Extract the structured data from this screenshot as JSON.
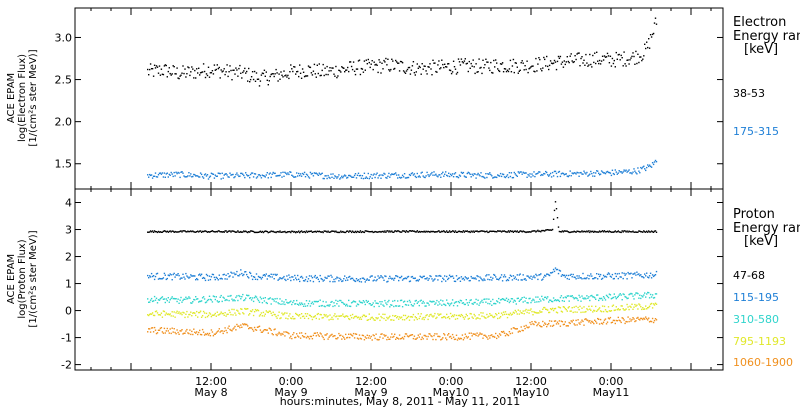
{
  "chart_data": [
    {
      "type": "scatter",
      "panel": "electron",
      "ylabel_lines": [
        "ACE EPAM",
        "log(Electron Flux)",
        "[1/(cm²s ster MeV)]"
      ],
      "ylim": [
        1.2,
        3.35
      ],
      "y_ticks": [
        1.5,
        2.0,
        2.5,
        3.0
      ],
      "y_tick_labels": [
        "1.5",
        "2.0",
        "2.5",
        "3.0"
      ],
      "legend_title_lines": [
        "Electron",
        "Energy ranges",
        "[keV]"
      ],
      "series": [
        {
          "name": "38-53",
          "color": "#000000",
          "baseline": 2.6,
          "points": [
            [
              0.1,
              2.6
            ],
            [
              0.2,
              2.62
            ],
            [
              0.3,
              2.58
            ],
            [
              0.4,
              2.6
            ],
            [
              0.5,
              2.63
            ],
            [
              0.6,
              2.6
            ],
            [
              0.7,
              2.58
            ],
            [
              0.8,
              2.52
            ],
            [
              0.9,
              2.55
            ],
            [
              1.0,
              2.6
            ],
            [
              1.1,
              2.62
            ],
            [
              1.2,
              2.6
            ],
            [
              1.3,
              2.62
            ],
            [
              1.4,
              2.65
            ],
            [
              1.5,
              2.66
            ],
            [
              1.6,
              2.68
            ],
            [
              1.7,
              2.66
            ],
            [
              1.8,
              2.64
            ],
            [
              1.9,
              2.65
            ],
            [
              2.0,
              2.66
            ],
            [
              2.1,
              2.67
            ],
            [
              2.2,
              2.66
            ],
            [
              2.3,
              2.68
            ],
            [
              2.4,
              2.67
            ],
            [
              2.5,
              2.68
            ],
            [
              2.6,
              2.7
            ],
            [
              2.7,
              2.72
            ],
            [
              2.8,
              2.74
            ],
            [
              2.9,
              2.75
            ],
            [
              3.0,
              2.74
            ],
            [
              3.05,
              2.75
            ],
            [
              3.1,
              2.76
            ],
            [
              3.15,
              2.78
            ],
            [
              3.2,
              2.82
            ],
            [
              3.23,
              2.92
            ],
            [
              3.26,
              3.08
            ],
            [
              3.28,
              3.2
            ]
          ]
        },
        {
          "name": "175-315",
          "color": "#1e7fd6",
          "baseline": 1.37,
          "points": [
            [
              0.1,
              1.37
            ],
            [
              0.3,
              1.38
            ],
            [
              0.5,
              1.36
            ],
            [
              0.8,
              1.37
            ],
            [
              1.0,
              1.38
            ],
            [
              1.3,
              1.36
            ],
            [
              1.6,
              1.37
            ],
            [
              1.9,
              1.38
            ],
            [
              2.2,
              1.37
            ],
            [
              2.5,
              1.38
            ],
            [
              2.8,
              1.39
            ],
            [
              3.0,
              1.4
            ],
            [
              3.15,
              1.42
            ],
            [
              3.22,
              1.46
            ],
            [
              3.26,
              1.5
            ],
            [
              3.28,
              1.55
            ]
          ]
        }
      ]
    },
    {
      "type": "scatter",
      "panel": "proton",
      "ylabel_lines": [
        "ACE EPAM",
        "log(Proton Flux)",
        "[1/(cm²s ster MeV)]"
      ],
      "ylim": [
        -2.2,
        4.5
      ],
      "y_ticks": [
        -2,
        -1,
        0,
        1,
        2,
        3,
        4
      ],
      "y_tick_labels": [
        "-2",
        "-1",
        "0",
        "1",
        "2",
        "3",
        "4"
      ],
      "legend_title_lines": [
        "Proton",
        "Energy ranges",
        "[keV]"
      ],
      "series": [
        {
          "name": "47-68",
          "color": "#000000",
          "baseline": 2.95,
          "points": [
            [
              0.1,
              2.95
            ],
            [
              0.5,
              2.95
            ],
            [
              1.0,
              2.94
            ],
            [
              1.5,
              2.95
            ],
            [
              2.0,
              2.95
            ],
            [
              2.5,
              2.95
            ],
            [
              2.63,
              3.0
            ],
            [
              2.64,
              3.6
            ],
            [
              2.65,
              4.1
            ],
            [
              2.67,
              2.95
            ],
            [
              3.0,
              2.95
            ],
            [
              3.28,
              2.95
            ]
          ]
        },
        {
          "name": "115-195",
          "color": "#1e7fd6",
          "baseline": 1.25,
          "points": [
            [
              0.1,
              1.3
            ],
            [
              0.3,
              1.28
            ],
            [
              0.5,
              1.25
            ],
            [
              0.6,
              1.3
            ],
            [
              0.7,
              1.45
            ],
            [
              0.75,
              1.3
            ],
            [
              1.0,
              1.22
            ],
            [
              1.5,
              1.2
            ],
            [
              2.0,
              1.22
            ],
            [
              2.3,
              1.24
            ],
            [
              2.6,
              1.28
            ],
            [
              2.65,
              1.55
            ],
            [
              2.7,
              1.3
            ],
            [
              3.0,
              1.3
            ],
            [
              3.28,
              1.35
            ]
          ]
        },
        {
          "name": "310-580",
          "color": "#2fd4cc",
          "baseline": 0.35,
          "points": [
            [
              0.1,
              0.45
            ],
            [
              0.3,
              0.4
            ],
            [
              0.7,
              0.5
            ],
            [
              1.0,
              0.3
            ],
            [
              1.5,
              0.28
            ],
            [
              2.0,
              0.3
            ],
            [
              2.3,
              0.35
            ],
            [
              2.6,
              0.45
            ],
            [
              3.0,
              0.52
            ],
            [
              3.28,
              0.6
            ]
          ]
        },
        {
          "name": "795-1193",
          "color": "#e0e82a",
          "baseline": -0.15,
          "points": [
            [
              0.1,
              -0.1
            ],
            [
              0.5,
              -0.12
            ],
            [
              0.7,
              0.0
            ],
            [
              1.0,
              -0.2
            ],
            [
              1.5,
              -0.22
            ],
            [
              2.0,
              -0.2
            ],
            [
              2.3,
              -0.15
            ],
            [
              2.6,
              0.05
            ],
            [
              3.0,
              0.1
            ],
            [
              3.28,
              0.2
            ]
          ]
        },
        {
          "name": "1060-1900",
          "color": "#f0901e",
          "baseline": -0.85,
          "points": [
            [
              0.1,
              -0.7
            ],
            [
              0.5,
              -0.8
            ],
            [
              0.7,
              -0.55
            ],
            [
              1.0,
              -0.9
            ],
            [
              1.5,
              -0.95
            ],
            [
              2.0,
              -0.95
            ],
            [
              2.3,
              -0.9
            ],
            [
              2.5,
              -0.5
            ],
            [
              3.0,
              -0.35
            ],
            [
              3.28,
              -0.3
            ]
          ]
        }
      ]
    }
  ],
  "x_axis": {
    "xlim_days": [
      -0.35,
      3.7
    ],
    "x_unit": "days from May 8, 2011 00:00",
    "tick_days": [
      0.5,
      1.0,
      1.5,
      2.0,
      2.5,
      3.0
    ],
    "tick_time_labels": [
      "12:00",
      "0:00",
      "12:00",
      "0:00",
      "12:00",
      "0:00"
    ],
    "tick_date_labels": [
      "May 8",
      "May 9",
      "May 9",
      "May10",
      "May10",
      "May11"
    ],
    "minor_tick_step_days": 0.125,
    "xlabel": "hours:minutes, May  8, 2011 - May 11, 2011"
  }
}
